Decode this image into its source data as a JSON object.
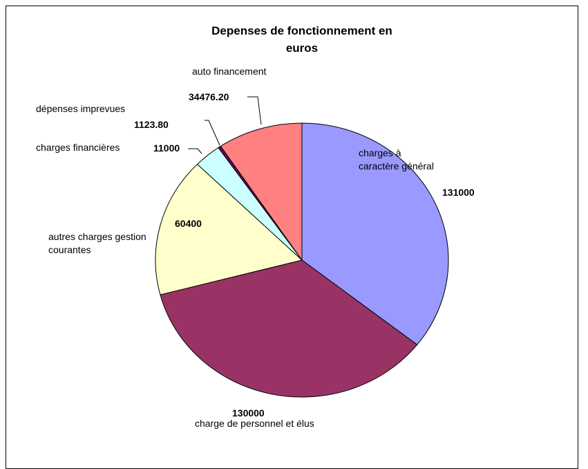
{
  "chart_data": {
    "type": "pie",
    "title": "Depenses de fonctionnement en euros",
    "categories": [
      "charges à caractère général",
      "charge de personnel et élus",
      "autres charges gestion courantes",
      "charges financières",
      "dépenses imprevues",
      "auto financement"
    ],
    "values": [
      131000,
      130000,
      60400,
      11000,
      1123.8,
      34476.2
    ],
    "value_labels": [
      "131000",
      "130000",
      "60400",
      "11000",
      "1123.80",
      "34476.20"
    ],
    "colors": [
      "#9999ff",
      "#993366",
      "#ffffcc",
      "#ccffff",
      "#660066",
      "#ff8080"
    ]
  }
}
